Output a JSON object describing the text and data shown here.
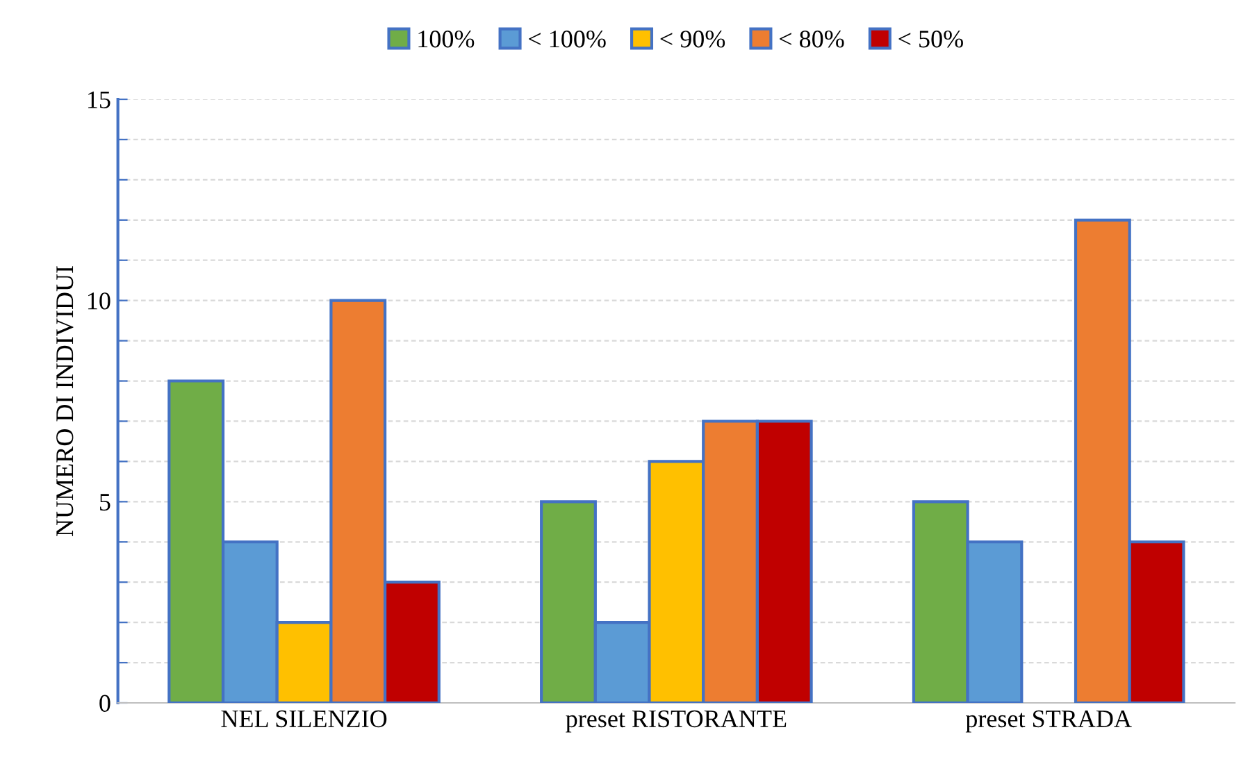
{
  "chart_data": {
    "type": "bar",
    "ylabel": "NUMERO DI INDIVIDUI",
    "categories": [
      "NEL SILENZIO",
      "preset RISTORANTE",
      "preset STRADA"
    ],
    "series": [
      {
        "name": "100%",
        "color": "#70ad47",
        "values": [
          8,
          5,
          5
        ]
      },
      {
        "name": "< 100%",
        "color": "#5b9bd5",
        "values": [
          4,
          2,
          4
        ]
      },
      {
        "name": "< 90%",
        "color": "#ffc000",
        "values": [
          2,
          6,
          null
        ]
      },
      {
        "name": "< 80%",
        "color": "#ed7d31",
        "values": [
          10,
          7,
          12
        ]
      },
      {
        "name": "< 50%",
        "color": "#c00000",
        "values": [
          3,
          7,
          4
        ]
      }
    ],
    "ylim": [
      0,
      15
    ],
    "yticks": [
      0,
      {
        "value": 1,
        "label": null
      },
      {
        "value": 2,
        "label": null
      },
      {
        "value": 3,
        "label": null
      },
      {
        "value": 4,
        "label": null
      },
      5,
      {
        "value": 6,
        "label": null
      },
      {
        "value": 7,
        "label": null
      },
      {
        "value": 8,
        "label": null
      },
      {
        "value": 9,
        "label": null
      },
      10,
      {
        "value": 11,
        "label": null
      },
      {
        "value": 12,
        "label": null
      },
      {
        "value": 13,
        "label": null
      },
      {
        "value": 14,
        "label": null
      },
      15
    ],
    "grid": "y",
    "legend": "top"
  }
}
